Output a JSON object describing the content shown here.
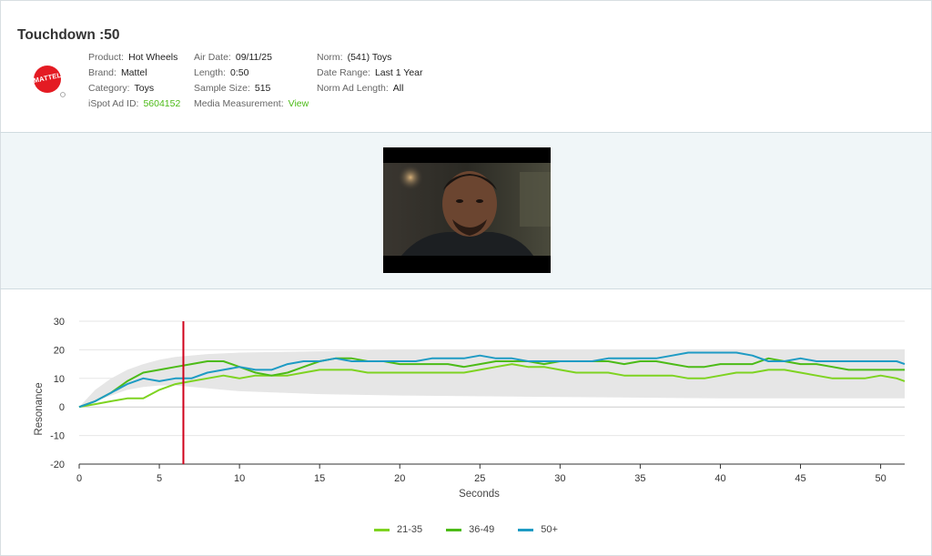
{
  "header": {
    "title": "Touchdown :50",
    "logo_text": "MATTEL",
    "col1": [
      {
        "key": "Product:",
        "value": "Hot Wheels"
      },
      {
        "key": "Brand:",
        "value": "Mattel"
      },
      {
        "key": "Category:",
        "value": "Toys"
      },
      {
        "key": "iSpot Ad ID:",
        "value": "5604152"
      }
    ],
    "col2": [
      {
        "key": "Air Date:",
        "value": "09/11/25"
      },
      {
        "key": "Length:",
        "value": "0:50"
      },
      {
        "key": "Sample Size:",
        "value": "515"
      },
      {
        "key": "Media Measurement:",
        "value": "View"
      }
    ],
    "col3": [
      {
        "key": "Norm:",
        "value": "(541) Toys"
      },
      {
        "key": "Date Range:",
        "value": "Last 1 Year"
      },
      {
        "key": "Norm Ad Length:",
        "value": "All"
      }
    ]
  },
  "colors": {
    "accent_green": "#4cbb17",
    "series_21_35": "#7ed321",
    "series_36_49": "#4cbb17",
    "series_50_plus": "#1e9bc4",
    "marker": "#d0021b",
    "norm_band": "#e6e6e6"
  },
  "chart_data": {
    "type": "line",
    "xlabel": "Seconds",
    "ylabel": "Resonance",
    "xlim": [
      0,
      51.5
    ],
    "ylim": [
      -20,
      30
    ],
    "xticks": [
      0,
      5,
      10,
      15,
      20,
      25,
      30,
      35,
      40,
      45,
      50
    ],
    "yticks": [
      30,
      20,
      10,
      0,
      -10,
      -20
    ],
    "grid": true,
    "legend_position": "bottom",
    "marker_x": 6.5,
    "norm_band": {
      "x": [
        0,
        1,
        2,
        3,
        4,
        5,
        6,
        8,
        10,
        15,
        20,
        30,
        40,
        51.5
      ],
      "upper": [
        0,
        6,
        10,
        13,
        15,
        16.5,
        17.5,
        18.5,
        19,
        19.5,
        20,
        20,
        20,
        20
      ],
      "lower": [
        0,
        2,
        4,
        6,
        7,
        7.5,
        7.5,
        6.5,
        5.5,
        4.5,
        4,
        3.5,
        3,
        3
      ]
    },
    "series": [
      {
        "name": "21-35",
        "x": [
          0,
          1,
          2,
          3,
          4,
          5,
          6,
          7,
          8,
          9,
          10,
          11,
          12,
          13,
          14,
          15,
          16,
          17,
          18,
          19,
          20,
          21,
          22,
          23,
          24,
          25,
          26,
          27,
          28,
          29,
          30,
          31,
          32,
          33,
          34,
          35,
          36,
          37,
          38,
          39,
          40,
          41,
          42,
          43,
          44,
          45,
          46,
          47,
          48,
          49,
          50,
          51,
          51.5
        ],
        "values": [
          0,
          1,
          2,
          3,
          3,
          6,
          8,
          9,
          10,
          11,
          10,
          11,
          11,
          11,
          12,
          13,
          13,
          13,
          12,
          12,
          12,
          12,
          12,
          12,
          12,
          13,
          14,
          15,
          14,
          14,
          13,
          12,
          12,
          12,
          11,
          11,
          11,
          11,
          10,
          10,
          11,
          12,
          12,
          13,
          13,
          12,
          11,
          10,
          10,
          10,
          11,
          10,
          9
        ]
      },
      {
        "name": "36-49",
        "x": [
          0,
          1,
          2,
          3,
          4,
          5,
          6,
          7,
          8,
          9,
          10,
          11,
          12,
          13,
          14,
          15,
          16,
          17,
          18,
          19,
          20,
          21,
          22,
          23,
          24,
          25,
          26,
          27,
          28,
          29,
          30,
          31,
          32,
          33,
          34,
          35,
          36,
          37,
          38,
          39,
          40,
          41,
          42,
          43,
          44,
          45,
          46,
          47,
          48,
          49,
          50,
          51,
          51.5
        ],
        "values": [
          0,
          2,
          5,
          9,
          12,
          13,
          14,
          15,
          16,
          16,
          14,
          12,
          11,
          12,
          14,
          16,
          17,
          17,
          16,
          16,
          15,
          15,
          15,
          15,
          14,
          15,
          16,
          16,
          16,
          15,
          16,
          16,
          16,
          16,
          15,
          16,
          16,
          15,
          14,
          14,
          15,
          15,
          15,
          17,
          16,
          15,
          15,
          14,
          13,
          13,
          13,
          13,
          13
        ]
      },
      {
        "name": "50+",
        "x": [
          0,
          1,
          2,
          3,
          4,
          5,
          6,
          7,
          8,
          9,
          10,
          11,
          12,
          13,
          14,
          15,
          16,
          17,
          18,
          19,
          20,
          21,
          22,
          23,
          24,
          25,
          26,
          27,
          28,
          29,
          30,
          31,
          32,
          33,
          34,
          35,
          36,
          37,
          38,
          39,
          40,
          41,
          42,
          43,
          44,
          45,
          46,
          47,
          48,
          49,
          50,
          51,
          51.5
        ],
        "values": [
          0,
          2,
          5,
          8,
          10,
          9,
          10,
          10,
          12,
          13,
          14,
          13,
          13,
          15,
          16,
          16,
          17,
          16,
          16,
          16,
          16,
          16,
          17,
          17,
          17,
          18,
          17,
          17,
          16,
          16,
          16,
          16,
          16,
          17,
          17,
          17,
          17,
          18,
          19,
          19,
          19,
          19,
          18,
          16,
          16,
          17,
          16,
          16,
          16,
          16,
          16,
          16,
          15
        ]
      }
    ]
  }
}
